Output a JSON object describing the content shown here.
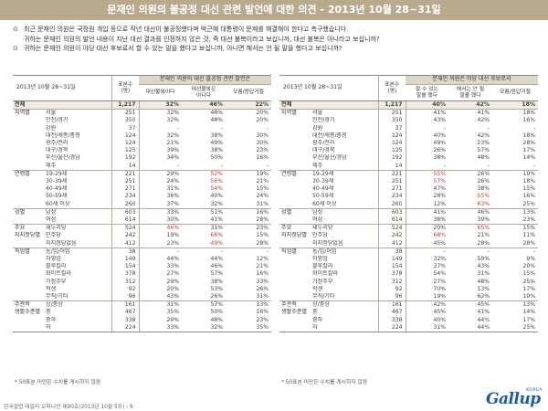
{
  "page_title": "문재인 의원의 불공정 대선 관련 발언에 대한 의견 - 2013년 10월 28~31일",
  "questions": [
    {
      "mark": "⊙",
      "text": "최근 문재인 의원은 국정원 개입 등으로 작년 대선이 불공정했다며 박근혜 대통령이 문제를 해결해야 한다고 촉구했습니다."
    },
    {
      "mark": "",
      "text": "귀하는 문재인 의원의 발언 내용이 지난 대선 결과를 인정하지 않은 것, 즉 대선 불복이라고 보십니까, 대선 불복은 아니라고 보십니까?"
    },
    {
      "mark": "⊙",
      "text": "귀하는 문재인 의원이 야당 대선 후보로서 할 수 있는 말을 했다고 보십니까, 아니면 해서는 안 될 말을 했다고 보십니까?"
    }
  ],
  "left_table": {
    "date_label": "2013년 10월 28~31일",
    "n_header": "표본수\n(명)",
    "group_title": "문재인 의원의 대선 불공정 관련 발언은",
    "col_headers": [
      "대선불복이다",
      "대선불복은\n아니다",
      "모름/응답거절"
    ],
    "rows": [
      {
        "group": "전체",
        "label": "",
        "n": "1,217",
        "v": [
          "32%",
          "46%",
          "22%"
        ],
        "red": [],
        "total": true
      },
      {
        "group": "지역별",
        "label": "서울",
        "n": "251",
        "v": [
          "32%",
          "48%",
          "20%"
        ],
        "red": [],
        "sep": true
      },
      {
        "group": "",
        "label": "인천/경기",
        "n": "350",
        "v": [
          "32%",
          "48%",
          "20%"
        ],
        "red": []
      },
      {
        "group": "",
        "label": "강원",
        "n": "37",
        "v": [
          "-",
          "-",
          "-"
        ],
        "red": []
      },
      {
        "group": "",
        "label": "대전/세종/충청",
        "n": "124",
        "v": [
          "32%",
          "38%",
          "30%"
        ],
        "red": []
      },
      {
        "group": "",
        "label": "광주/전라",
        "n": "124",
        "v": [
          "21%",
          "49%",
          "30%"
        ],
        "red": []
      },
      {
        "group": "",
        "label": "대구/경북",
        "n": "125",
        "v": [
          "39%",
          "38%",
          "23%"
        ],
        "red": []
      },
      {
        "group": "",
        "label": "부산/울산/경남",
        "n": "192",
        "v": [
          "34%",
          "50%",
          "16%"
        ],
        "red": []
      },
      {
        "group": "",
        "label": "제주",
        "n": "14",
        "v": [
          "-",
          "-",
          "-"
        ],
        "red": []
      },
      {
        "group": "연령별",
        "label": "19-29세",
        "n": "221",
        "v": [
          "29%",
          "52%",
          "19%"
        ],
        "red": [
          1
        ],
        "sep": true
      },
      {
        "group": "",
        "label": "30-39세",
        "n": "251",
        "v": [
          "24%",
          "56%",
          "21%"
        ],
        "red": [
          1
        ]
      },
      {
        "group": "",
        "label": "40-49세",
        "n": "271",
        "v": [
          "31%",
          "54%",
          "15%"
        ],
        "red": [
          1
        ]
      },
      {
        "group": "",
        "label": "50-59세",
        "n": "234",
        "v": [
          "36%",
          "40%",
          "24%"
        ],
        "red": []
      },
      {
        "group": "",
        "label": "60세 이상",
        "n": "260",
        "v": [
          "37%",
          "32%",
          "31%"
        ],
        "red": []
      },
      {
        "group": "성별",
        "label": "남성",
        "n": "603",
        "v": [
          "33%",
          "51%",
          "16%"
        ],
        "red": [],
        "sep": true
      },
      {
        "group": "",
        "label": "여성",
        "n": "614",
        "v": [
          "30%",
          "41%",
          "28%"
        ],
        "red": []
      },
      {
        "group": "주요",
        "label": "새누리당",
        "n": "524",
        "v": [
          "46%",
          "31%",
          "23%"
        ],
        "red": [
          0
        ],
        "sep": true
      },
      {
        "group": "지지정당별",
        "label": "민주당",
        "n": "242",
        "v": [
          "19%",
          "66%",
          "15%"
        ],
        "red": [
          1
        ]
      },
      {
        "group": "",
        "label": "지지정당없음",
        "n": "412",
        "v": [
          "23%",
          "49%",
          "28%"
        ],
        "red": [
          1
        ]
      },
      {
        "group": "직업별",
        "label": "농/임/어업",
        "n": "38",
        "v": [
          "-",
          "-",
          "-"
        ],
        "red": [],
        "sep": true
      },
      {
        "group": "",
        "label": "자영업",
        "n": "149",
        "v": [
          "44%",
          "44%",
          "12%"
        ],
        "red": []
      },
      {
        "group": "",
        "label": "블루칼라",
        "n": "154",
        "v": [
          "33%",
          "46%",
          "21%"
        ],
        "red": []
      },
      {
        "group": "",
        "label": "화이트칼라",
        "n": "378",
        "v": [
          "27%",
          "57%",
          "16%"
        ],
        "red": []
      },
      {
        "group": "",
        "label": "가정주부",
        "n": "312",
        "v": [
          "29%",
          "38%",
          "33%"
        ],
        "red": []
      },
      {
        "group": "",
        "label": "학생",
        "n": "92",
        "v": [
          "20%",
          "53%",
          "26%"
        ],
        "red": []
      },
      {
        "group": "",
        "label": "무직/기타",
        "n": "96",
        "v": [
          "43%",
          "26%",
          "31%"
        ],
        "red": []
      },
      {
        "group": "주관적",
        "label": "상/중상",
        "n": "161",
        "v": [
          "31%",
          "57%",
          "13%"
        ],
        "red": [],
        "sep": true
      },
      {
        "group": "생활수준별",
        "label": "중",
        "n": "467",
        "v": [
          "35%",
          "50%",
          "16%"
        ],
        "red": []
      },
      {
        "group": "",
        "label": "중하",
        "n": "338",
        "v": [
          "29%",
          "48%",
          "23%"
        ],
        "red": []
      },
      {
        "group": "",
        "label": "하",
        "n": "224",
        "v": [
          "33%",
          "32%",
          "35%"
        ],
        "red": [],
        "last": true
      }
    ],
    "footnote": "* 50표본 미만은 수치를 게시하지 않음"
  },
  "right_table": {
    "date_label": "2013년 10월 28~31일",
    "n_header": "표본수\n(명)",
    "group_title": "문재인 의원은 야당 대선 후보로서",
    "col_headers": [
      "할 수 있는\n말을 했다",
      "해서는 안 될\n말을 했다",
      "모름/응답거절"
    ],
    "rows": [
      {
        "group": "전체",
        "label": "",
        "n": "1,217",
        "v": [
          "40%",
          "42%",
          "18%"
        ],
        "red": [],
        "total": true
      },
      {
        "group": "지역별",
        "label": "서울",
        "n": "251",
        "v": [
          "41%",
          "41%",
          "18%"
        ],
        "red": [],
        "sep": true
      },
      {
        "group": "",
        "label": "인천/경기",
        "n": "350",
        "v": [
          "43%",
          "42%",
          "16%"
        ],
        "red": []
      },
      {
        "group": "",
        "label": "강원",
        "n": "37",
        "v": [
          "-",
          "-",
          "-"
        ],
        "red": []
      },
      {
        "group": "",
        "label": "대전/세종/충청",
        "n": "124",
        "v": [
          "40%",
          "42%",
          "18%"
        ],
        "red": []
      },
      {
        "group": "",
        "label": "광주/전라",
        "n": "124",
        "v": [
          "49%",
          "23%",
          "28%"
        ],
        "red": []
      },
      {
        "group": "",
        "label": "대구/경북",
        "n": "125",
        "v": [
          "26%",
          "57%",
          "17%"
        ],
        "red": []
      },
      {
        "group": "",
        "label": "부산/울산/경남",
        "n": "192",
        "v": [
          "38%",
          "48%",
          "14%"
        ],
        "red": []
      },
      {
        "group": "",
        "label": "제주",
        "n": "14",
        "v": [
          "-",
          "-",
          "-"
        ],
        "red": []
      },
      {
        "group": "연령별",
        "label": "19-29세",
        "n": "221",
        "v": [
          "55%",
          "26%",
          "19%"
        ],
        "red": [
          0
        ],
        "sep": true
      },
      {
        "group": "",
        "label": "30-39세",
        "n": "251",
        "v": [
          "57%",
          "26%",
          "18%"
        ],
        "red": [
          0
        ]
      },
      {
        "group": "",
        "label": "40-49세",
        "n": "271",
        "v": [
          "47%",
          "38%",
          "15%"
        ],
        "red": []
      },
      {
        "group": "",
        "label": "50-59세",
        "n": "234",
        "v": [
          "28%",
          "55%",
          "16%"
        ],
        "red": [
          1
        ]
      },
      {
        "group": "",
        "label": "60세 이상",
        "n": "260",
        "v": [
          "12%",
          "63%",
          "25%"
        ],
        "red": [
          1
        ]
      },
      {
        "group": "성별",
        "label": "남성",
        "n": "603",
        "v": [
          "41%",
          "46%",
          "13%"
        ],
        "red": [],
        "sep": true
      },
      {
        "group": "",
        "label": "여성",
        "n": "614",
        "v": [
          "38%",
          "39%",
          "23%"
        ],
        "red": []
      },
      {
        "group": "주요",
        "label": "새누리당",
        "n": "524",
        "v": [
          "20%",
          "65%",
          "15%"
        ],
        "red": [
          1
        ],
        "sep": true
      },
      {
        "group": "지지정당별",
        "label": "민주당",
        "n": "242",
        "v": [
          "68%",
          "21%",
          "11%"
        ],
        "red": [
          0
        ]
      },
      {
        "group": "",
        "label": "지지정당없음",
        "n": "412",
        "v": [
          "45%",
          "28%",
          "28%"
        ],
        "red": []
      },
      {
        "group": "직업별",
        "label": "농/임/어업",
        "n": "38",
        "v": [
          "-",
          "-",
          "-"
        ],
        "red": [],
        "sep": true
      },
      {
        "group": "",
        "label": "자영업",
        "n": "149",
        "v": [
          "32%",
          "59%",
          "9%"
        ],
        "red": []
      },
      {
        "group": "",
        "label": "블루칼라",
        "n": "154",
        "v": [
          "37%",
          "43%",
          "20%"
        ],
        "red": []
      },
      {
        "group": "",
        "label": "화이트칼라",
        "n": "378",
        "v": [
          "54%",
          "31%",
          "15%"
        ],
        "red": []
      },
      {
        "group": "",
        "label": "가정주부",
        "n": "312",
        "v": [
          "27%",
          "48%",
          "25%"
        ],
        "red": []
      },
      {
        "group": "",
        "label": "학생",
        "n": "92",
        "v": [
          "70%",
          "13%",
          "17%"
        ],
        "red": []
      },
      {
        "group": "",
        "label": "무직/기타",
        "n": "96",
        "v": [
          "19%",
          "62%",
          "19%"
        ],
        "red": []
      },
      {
        "group": "주관적",
        "label": "상/중상",
        "n": "161",
        "v": [
          "42%",
          "45%",
          "13%"
        ],
        "red": [],
        "sep": true
      },
      {
        "group": "생활수준별",
        "label": "중",
        "n": "467",
        "v": [
          "45%",
          "41%",
          "14%"
        ],
        "red": []
      },
      {
        "group": "",
        "label": "중하",
        "n": "338",
        "v": [
          "40%",
          "44%",
          "17%"
        ],
        "red": []
      },
      {
        "group": "",
        "label": "하",
        "n": "224",
        "v": [
          "31%",
          "44%",
          "25%"
        ],
        "red": [],
        "last": true
      }
    ],
    "footnote": "* 50표본 미만은 수치를 게시하지 않음"
  },
  "source": "한국갤럽 데일리 오피니언 제90호(2013년 10월 5주) - 9",
  "logo": {
    "word": "Gallup",
    "sub": "KOREA"
  },
  "colors": {
    "title_bar": "#b8a98f",
    "header_fill": "#ddd6c9",
    "highlight": "#c23a3a",
    "logo": "#1e5aa8"
  }
}
